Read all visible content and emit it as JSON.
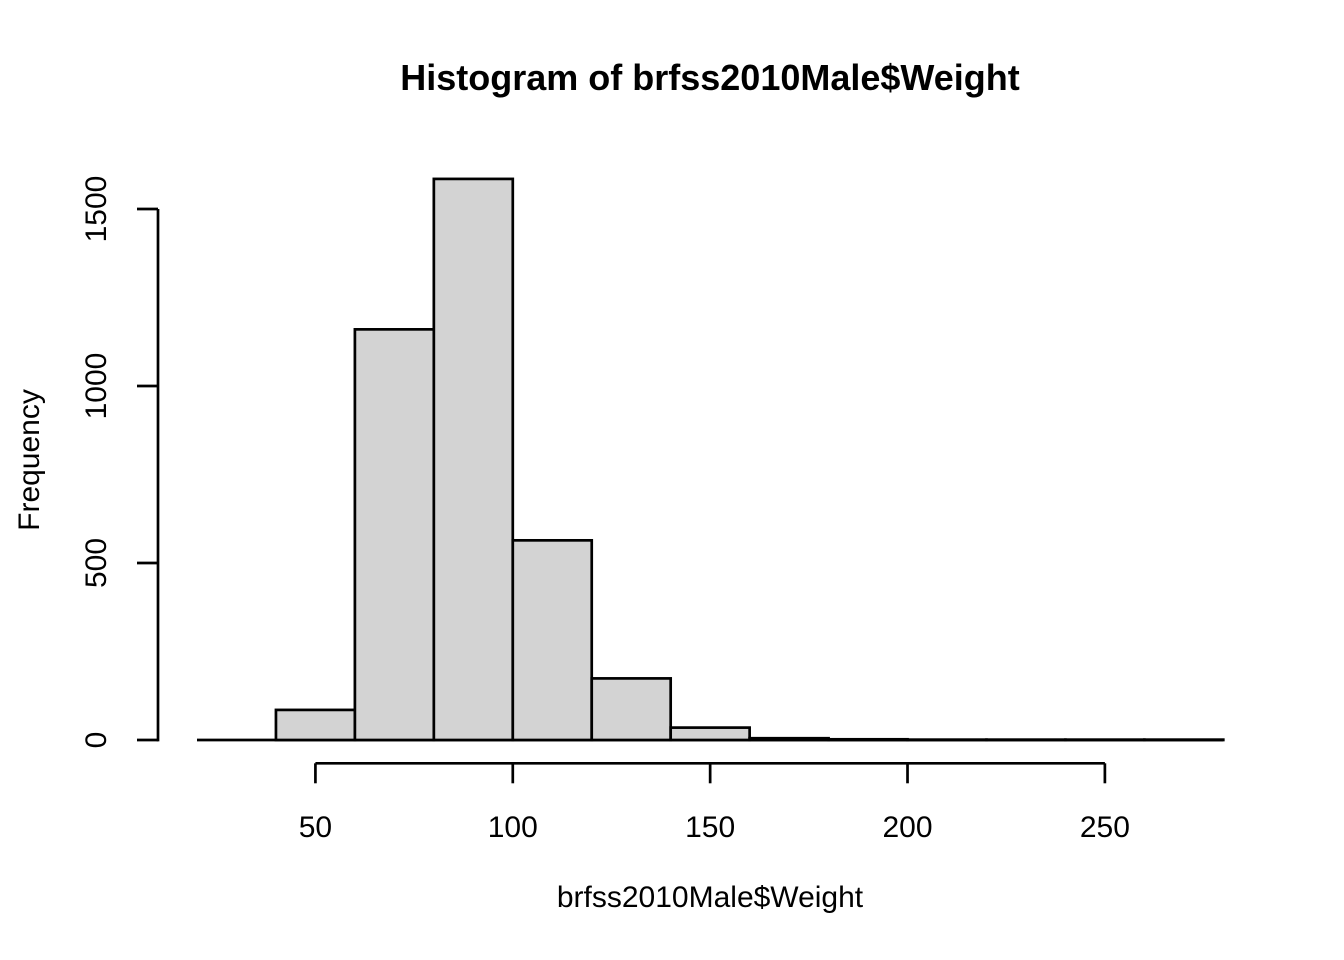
{
  "chart_data": {
    "type": "bar",
    "subtype": "histogram",
    "title": "Histogram of brfss2010Male$Weight",
    "xlabel": "brfss2010Male$Weight",
    "ylabel": "Frequency",
    "bin_edges": [
      20,
      40,
      60,
      80,
      100,
      120,
      140,
      160,
      180,
      200,
      220,
      240,
      260,
      280
    ],
    "counts": [
      0,
      85,
      1160,
      1585,
      564,
      174,
      35,
      5,
      2,
      1,
      1,
      1,
      1
    ],
    "x_ticks": [
      50,
      100,
      150,
      200,
      250
    ],
    "y_ticks": [
      0,
      500,
      1000,
      1500
    ],
    "xlim": [
      20,
      280
    ],
    "ylim": [
      0,
      1500
    ],
    "legend": "none",
    "grid": false,
    "bar_fill": "#d3d3d3",
    "bar_border": "#000000",
    "axis_color": "#000000",
    "background": "#ffffff"
  }
}
